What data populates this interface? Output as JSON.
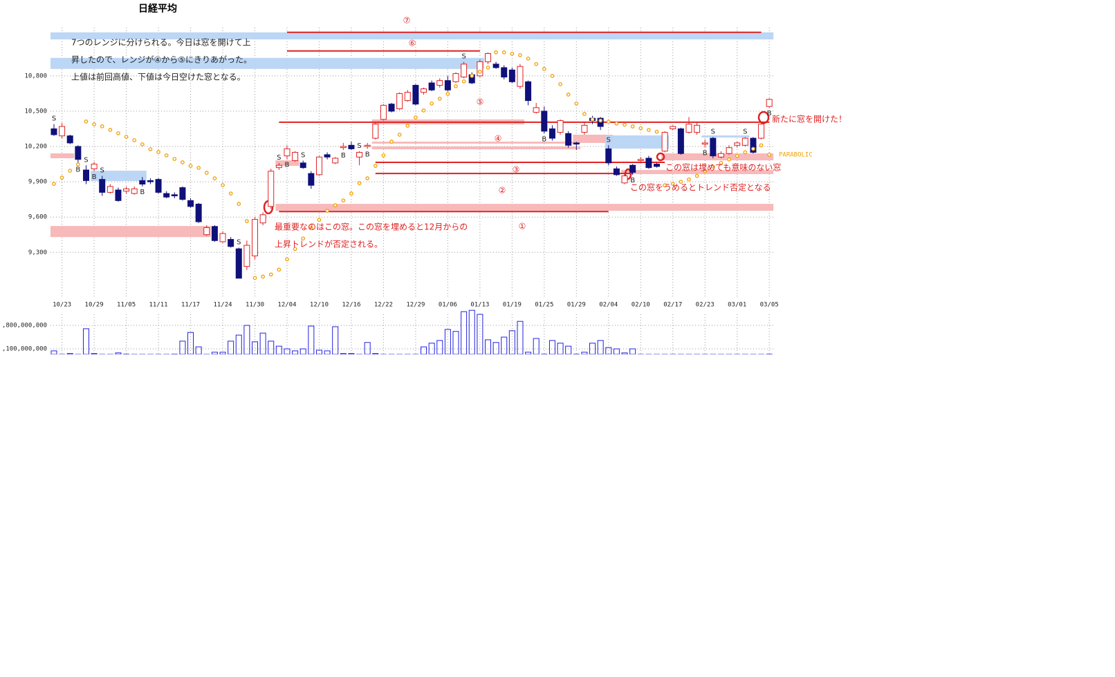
{
  "chart_data": {
    "type": "candlestick",
    "title": "日経平均",
    "categories": [
      null,
      "10/23",
      null,
      null,
      null,
      "10/29",
      null,
      null,
      null,
      "11/05",
      null,
      null,
      null,
      "11/11",
      null,
      null,
      null,
      "11/17",
      null,
      null,
      null,
      "11/24",
      null,
      null,
      null,
      "11/30",
      null,
      null,
      null,
      "12/04",
      null,
      null,
      null,
      "12/10",
      null,
      null,
      null,
      "12/16",
      null,
      null,
      null,
      "12/22",
      null,
      null,
      null,
      "12/29",
      null,
      null,
      null,
      "01/06",
      null,
      null,
      null,
      "01/13",
      null,
      null,
      null,
      "01/19",
      null,
      null,
      null,
      "01/25",
      null,
      null,
      null,
      "01/29",
      null,
      null,
      null,
      "02/04",
      null,
      null,
      null,
      "02/10",
      null,
      null,
      null,
      "02/17",
      null,
      null,
      null,
      "02/23",
      null,
      null,
      null,
      "03/01",
      null,
      null,
      null,
      "03/05"
    ],
    "open": [
      10350,
      10290,
      10290,
      10200,
      10000,
      10010,
      9920,
      9810,
      9830,
      9820,
      9800,
      9910,
      9910,
      9920,
      9800,
      9790,
      9850,
      9740,
      9710,
      9450,
      9520,
      9390,
      9410,
      9330,
      9180,
      9270,
      9550,
      9690,
      10020,
      10120,
      10080,
      10060,
      9970,
      9960,
      10130,
      10060,
      10190,
      10210,
      10110,
      10200,
      10270,
      10430,
      10560,
      10520,
      10590,
      10720,
      10660,
      10740,
      10720,
      10760,
      10750,
      10790,
      10810,
      10800,
      10920,
      10900,
      10870,
      10850,
      10710,
      10750,
      10490,
      10500,
      10350,
      10320,
      10310,
      10230,
      10320,
      10440,
      10440,
      10180,
      10010,
      9890,
      10040,
      10080,
      10100,
      10050,
      10160,
      10350,
      10350,
      10320,
      10320,
      10220,
      10270,
      10110,
      10140,
      10210,
      10210,
      10270,
      10270,
      10540
    ],
    "high": [
      10390,
      10400,
      10300,
      10210,
      10040,
      10070,
      9950,
      9880,
      9850,
      9860,
      9860,
      9940,
      9930,
      9930,
      9820,
      9810,
      9860,
      9760,
      9720,
      9530,
      9530,
      9480,
      9430,
      9340,
      9400,
      9600,
      9640,
      10010,
      10060,
      10210,
      10160,
      10080,
      9990,
      10120,
      10150,
      10110,
      10230,
      10240,
      10160,
      10230,
      10400,
      10560,
      10570,
      10660,
      10680,
      10730,
      10700,
      10760,
      10780,
      10800,
      10830,
      10920,
      10830,
      10940,
      11000,
      10920,
      10890,
      10870,
      10900,
      10760,
      10570,
      10540,
      10380,
      10430,
      10330,
      10240,
      10410,
      10460,
      10450,
      10210,
      10030,
      9970,
      10050,
      10110,
      10120,
      10060,
      10330,
      10380,
      10360,
      10450,
      10400,
      10260,
      10280,
      10160,
      10210,
      10240,
      10280,
      10280,
      10400,
      10610
    ],
    "low": [
      10290,
      10270,
      10220,
      10050,
      9880,
      9990,
      9780,
      9800,
      9730,
      9800,
      9790,
      9860,
      9880,
      9800,
      9760,
      9760,
      9740,
      9680,
      9550,
      9440,
      9390,
      9380,
      9340,
      9080,
      9150,
      9240,
      9530,
      9670,
      10000,
      10090,
      10070,
      10010,
      9840,
      9950,
      10090,
      10050,
      10170,
      10170,
      10040,
      10180,
      10260,
      10420,
      10490,
      10510,
      10580,
      10550,
      10640,
      10670,
      10700,
      10670,
      10740,
      10780,
      10730,
      10790,
      10900,
      10860,
      10770,
      10740,
      10690,
      10550,
      10480,
      10310,
      10250,
      10300,
      10190,
      10170,
      10300,
      10390,
      10340,
      10040,
      9950,
      9880,
      9960,
      10070,
      10010,
      10020,
      10150,
      10340,
      10130,
      10310,
      10300,
      10190,
      10100,
      10100,
      10130,
      10190,
      10200,
      10140,
      10260,
      10530
    ],
    "close": [
      10300,
      10370,
      10230,
      10090,
      9910,
      10050,
      9810,
      9860,
      9740,
      9840,
      9840,
      9880,
      9900,
      9810,
      9770,
      9780,
      9750,
      9690,
      9560,
      9510,
      9400,
      9460,
      9350,
      9080,
      9360,
      9580,
      9620,
      9990,
      10040,
      10180,
      10150,
      10020,
      9870,
      10110,
      10110,
      10100,
      10200,
      10180,
      10150,
      10210,
      10390,
      10550,
      10500,
      10650,
      10660,
      10560,
      10690,
      10680,
      10760,
      10680,
      10820,
      10900,
      10740,
      10920,
      10990,
      10870,
      10790,
      10750,
      10880,
      10590,
      10530,
      10330,
      10270,
      10420,
      10210,
      10220,
      10380,
      10420,
      10370,
      10060,
      9960,
      9950,
      9980,
      10090,
      10020,
      10030,
      10320,
      10370,
      10140,
      10390,
      10380,
      10230,
      10120,
      10140,
      10190,
      10230,
      10270,
      10150,
      10390,
      10600
    ],
    "volume": [
      1040000000,
      900000000,
      960000000,
      900000000,
      1700000000,
      960000000,
      900000000,
      900000000,
      980000000,
      940000000,
      900000000,
      900000000,
      900000000,
      900000000,
      900000000,
      940000000,
      1330000000,
      1590000000,
      1160000000,
      900000000,
      1000000000,
      1000000000,
      1330000000,
      1510000000,
      1800000000,
      1310000000,
      1570000000,
      1330000000,
      1180000000,
      1100000000,
      1040000000,
      1100000000,
      1780000000,
      1060000000,
      1040000000,
      1760000000,
      960000000,
      960000000,
      900000000,
      1290000000,
      960000000,
      900000000,
      900000000,
      900000000,
      900000000,
      900000000,
      1160000000,
      1270000000,
      1350000000,
      1680000000,
      1620000000,
      2210000000,
      2250000000,
      2130000000,
      1370000000,
      1290000000,
      1450000000,
      1640000000,
      1920000000,
      1000000000,
      1410000000,
      940000000,
      1350000000,
      1270000000,
      1180000000,
      940000000,
      1000000000,
      1270000000,
      1350000000,
      1140000000,
      1100000000,
      980000000,
      1100000000,
      900000000,
      900000000,
      900000000,
      900000000,
      900000000,
      900000000,
      900000000,
      900000000,
      900000000,
      900000000,
      900000000,
      900000000,
      900000000,
      900000000,
      900000000,
      900000000,
      940000000
    ],
    "series": [
      {
        "name": "PARABOLIC",
        "color": "#f0a000",
        "values": [
          9882,
          9935,
          9994,
          10047,
          10412,
          10388,
          10371,
          10341,
          10312,
          10282,
          10253,
          10218,
          10176,
          10153,
          10124,
          10094,
          10065,
          10035,
          10018,
          9976,
          9929,
          9871,
          9800,
          9712,
          9565,
          9082,
          9094,
          9112,
          9153,
          9241,
          9329,
          9418,
          9506,
          9576,
          9653,
          9700,
          9741,
          9800,
          9888,
          9929,
          10035,
          10124,
          10241,
          10300,
          10376,
          10447,
          10506,
          10565,
          10606,
          10647,
          10712,
          10753,
          10800,
          10835,
          10871,
          11000,
          11000,
          10988,
          10976,
          10947,
          10900,
          10859,
          10800,
          10729,
          10641,
          10565,
          10476,
          10430,
          10420,
          10410,
          10395,
          10385,
          10370,
          10355,
          10340,
          10325,
          9870,
          9882,
          9900,
          9920,
          9950,
          9990,
          10030,
          10060,
          10090,
          10120,
          10150,
          10180,
          10210,
          10130
        ]
      }
    ],
    "up_color": "#e02020",
    "down_color": "#10107a",
    "ylim": [
      8920,
      11210
    ],
    "yticks": [
      {
        "value": 9300,
        "label": "9,300"
      },
      {
        "value": 9600,
        "label": "9,600"
      },
      {
        "value": 9900,
        "label": "9,900"
      },
      {
        "value": 10200,
        "label": "10,200"
      },
      {
        "value": 10500,
        "label": "10,500"
      },
      {
        "value": 10800,
        "label": "10,800"
      }
    ],
    "vlim": [
      935000000,
      2130000000
    ],
    "vticks": [
      {
        "value": 1100000000,
        "label": ",100,000,000"
      },
      {
        "value": 1800000000,
        "label": ",800,000,000"
      }
    ],
    "volume_color": "#2020e0",
    "grid": true,
    "zones": [
      {
        "start": 0,
        "end": 89,
        "low": 11110,
        "high": 11170,
        "color": "#b8d4f4"
      },
      {
        "start": 0,
        "end": 53,
        "low": 10859,
        "high": 10953,
        "color": "#b8d4f4"
      },
      {
        "start": 0,
        "end": 2,
        "low": 10100,
        "high": 10141,
        "color": "#f7b5b5"
      },
      {
        "start": 5,
        "end": 11,
        "low": 9906,
        "high": 9994,
        "color": "#b8d4f4"
      },
      {
        "start": 0,
        "end": 19,
        "low": 9430,
        "high": 9524,
        "color": "#f7b5b5"
      },
      {
        "start": 28,
        "end": 89,
        "low": 9653,
        "high": 9712,
        "color": "#f7b5b5"
      },
      {
        "start": 28,
        "end": 30,
        "low": 10035,
        "high": 10082,
        "color": "#f7b5b5"
      },
      {
        "start": 40,
        "end": 58,
        "low": 10388,
        "high": 10430,
        "color": "#f7b5b5"
      },
      {
        "start": 40,
        "end": 65,
        "low": 10224,
        "high": 10241,
        "color": "#f7b5b5"
      },
      {
        "start": 40,
        "end": 65,
        "low": 10176,
        "high": 10200,
        "color": "#f7b5b5"
      },
      {
        "start": 65,
        "end": 69,
        "low": 10230,
        "high": 10300,
        "color": "#f7b5b5"
      },
      {
        "start": 69,
        "end": 76,
        "low": 10182,
        "high": 10294,
        "color": "#b8d4f4"
      },
      {
        "start": 76,
        "end": 89,
        "low": 10082,
        "high": 10141,
        "color": "#f7b5b5"
      },
      {
        "start": 81,
        "end": 86,
        "low": 10276,
        "high": 10294,
        "color": "#b8d4f4"
      },
      {
        "start": 71,
        "end": 89,
        "low": 9965,
        "high": 10000,
        "color": "#f7b5b5"
      }
    ],
    "lines": [
      {
        "start": 29,
        "end": 88,
        "value": 11170,
        "color": "#e02020"
      },
      {
        "start": 29,
        "end": 53,
        "value": 11012,
        "color": "#e02020"
      },
      {
        "start": 28,
        "end": 89,
        "value": 10406,
        "color": "#e02020"
      },
      {
        "start": 40,
        "end": 76,
        "value": 10065,
        "color": "#e02020"
      },
      {
        "start": 40,
        "end": 72,
        "value": 9970,
        "color": "#e02020"
      },
      {
        "start": 28,
        "end": 69,
        "value": 9647,
        "color": "#e02020"
      }
    ],
    "range_labels": [
      "①",
      "②",
      "③",
      "④",
      "⑤",
      "⑥",
      "⑦"
    ],
    "signals": [
      "S",
      "B",
      "S",
      "B",
      "S",
      "B",
      "S",
      "S",
      "B",
      "S",
      "B",
      "S",
      "B",
      "S",
      "B",
      "S",
      "B",
      "S",
      "B",
      "S",
      "B"
    ],
    "notes": [
      "7つのレンジに分けられる。今日は窓を開けて上",
      "昇したので、レンジが④から⑤にきりあがった。",
      "上値は前回高値、下値は今日空けた窓となる。"
    ],
    "annotations": [
      "最重要なのはこの窓。この窓を埋めると12月からの",
      "上昇トレンドが否定される。",
      "新たに窓を開けた！",
      "この窓は埋めても意味のない窓",
      "この窓をうめるとトレンド否定となる"
    ]
  }
}
